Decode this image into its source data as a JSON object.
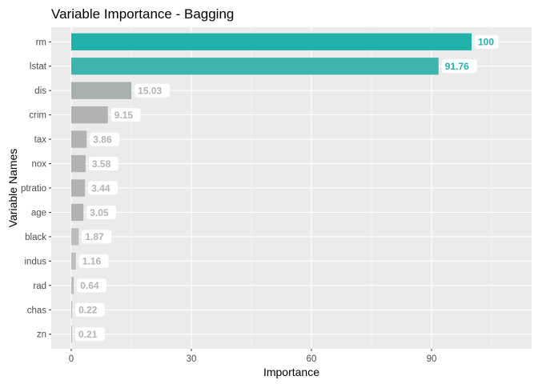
{
  "chart_data": {
    "type": "bar",
    "orientation": "horizontal",
    "title": "Variable Importance - Bagging",
    "xlabel": "Importance",
    "ylabel": "Variable Names",
    "categories": [
      "rm",
      "lstat",
      "dis",
      "crim",
      "tax",
      "nox",
      "ptratio",
      "age",
      "black",
      "indus",
      "rad",
      "chas",
      "zn"
    ],
    "values": [
      100,
      91.76,
      15.03,
      9.15,
      3.86,
      3.58,
      3.44,
      3.05,
      1.87,
      1.16,
      0.64,
      0.22,
      0.21
    ],
    "data_labels": [
      "100",
      "91.76",
      "15.03",
      "9.15",
      "3.86",
      "3.58",
      "3.44",
      "3.05",
      "1.87",
      "1.16",
      "0.64",
      "0.22",
      "0.21"
    ],
    "xlim": [
      -5,
      115
    ],
    "xticks": [
      0,
      30,
      60,
      90
    ],
    "xtick_labels": [
      "0",
      "30",
      "60",
      "90"
    ],
    "grid": true,
    "legend": "none",
    "colors": {
      "panel_background": "#ebebeb",
      "grid_major": "#ffffff",
      "highlight_bar": "#20b2aa",
      "highlight_label": "#20b2aa",
      "other_bar_dark": "#a6b0ae",
      "other_bar_light": "#bdbdbd",
      "other_label": "#b3b3b3"
    },
    "highlight_count": 2
  }
}
